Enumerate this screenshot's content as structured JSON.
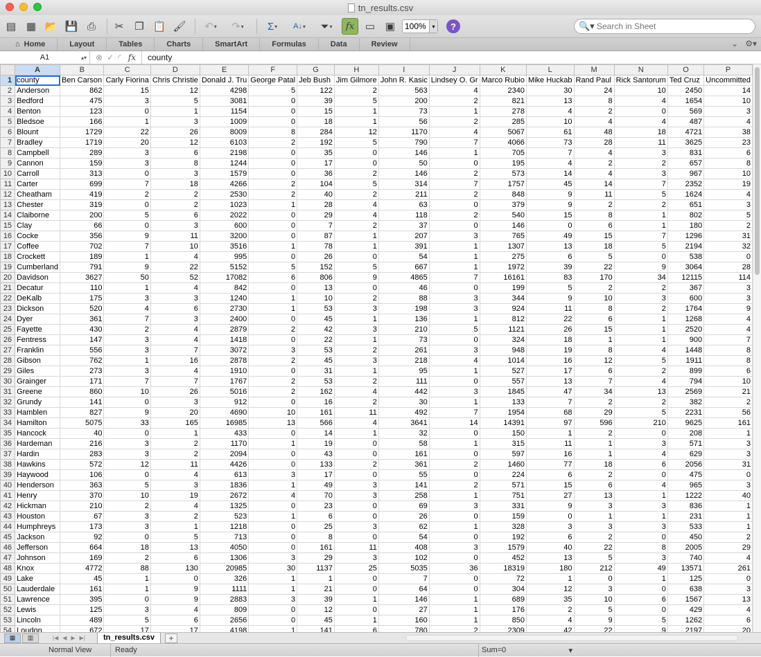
{
  "window": {
    "title": "tn_results.csv"
  },
  "toolbar": {
    "zoom": "100%",
    "search_placeholder": "Search in Sheet"
  },
  "ribbon": {
    "tabs": [
      "Home",
      "Layout",
      "Tables",
      "Charts",
      "SmartArt",
      "Formulas",
      "Data",
      "Review"
    ]
  },
  "formula_bar": {
    "cell_ref": "A1",
    "fx": "fx",
    "content": "county"
  },
  "grid": {
    "column_letters": [
      "A",
      "B",
      "C",
      "D",
      "E",
      "F",
      "G",
      "H",
      "I",
      "J",
      "K",
      "L",
      "M",
      "N",
      "O",
      "P"
    ],
    "rows": [
      [
        "county",
        "Ben Carson",
        "Carly Fiorina",
        "Chris Christie",
        "Donald J. Tru",
        "George Patal",
        "Jeb Bush",
        "Jim Gilmore",
        "John R. Kasic",
        "Lindsey O. Gr",
        "Marco Rubio",
        "Mike Huckab",
        "Rand Paul",
        "Rick Santorum",
        "Ted Cruz",
        "Uncommitted"
      ],
      [
        "Anderson",
        "862",
        "15",
        "12",
        "4298",
        "5",
        "122",
        "2",
        "563",
        "4",
        "2340",
        "30",
        "24",
        "10",
        "2450",
        "14"
      ],
      [
        "Bedford",
        "475",
        "3",
        "5",
        "3081",
        "0",
        "39",
        "5",
        "200",
        "2",
        "821",
        "13",
        "8",
        "4",
        "1654",
        "10"
      ],
      [
        "Benton",
        "123",
        "0",
        "1",
        "1154",
        "0",
        "15",
        "1",
        "73",
        "1",
        "278",
        "4",
        "2",
        "0",
        "569",
        "3"
      ],
      [
        "Bledsoe",
        "166",
        "1",
        "3",
        "1009",
        "0",
        "18",
        "1",
        "56",
        "2",
        "285",
        "10",
        "4",
        "4",
        "487",
        "4"
      ],
      [
        "Blount",
        "1729",
        "22",
        "26",
        "8009",
        "8",
        "284",
        "12",
        "1170",
        "4",
        "5067",
        "61",
        "48",
        "18",
        "4721",
        "38"
      ],
      [
        "Bradley",
        "1719",
        "20",
        "12",
        "6103",
        "2",
        "192",
        "5",
        "790",
        "7",
        "4066",
        "73",
        "28",
        "11",
        "3625",
        "23"
      ],
      [
        "Campbell",
        "289",
        "3",
        "6",
        "2198",
        "0",
        "35",
        "0",
        "146",
        "1",
        "705",
        "7",
        "4",
        "3",
        "831",
        "6"
      ],
      [
        "Cannon",
        "159",
        "3",
        "8",
        "1244",
        "0",
        "17",
        "0",
        "50",
        "0",
        "195",
        "4",
        "2",
        "2",
        "657",
        "8"
      ],
      [
        "Carroll",
        "313",
        "0",
        "3",
        "1579",
        "0",
        "36",
        "2",
        "146",
        "2",
        "573",
        "14",
        "4",
        "3",
        "967",
        "10"
      ],
      [
        "Carter",
        "699",
        "7",
        "18",
        "4266",
        "2",
        "104",
        "5",
        "314",
        "7",
        "1757",
        "45",
        "14",
        "7",
        "2352",
        "19"
      ],
      [
        "Cheatham",
        "419",
        "2",
        "2",
        "2530",
        "2",
        "40",
        "2",
        "211",
        "2",
        "848",
        "9",
        "11",
        "5",
        "1624",
        "4"
      ],
      [
        "Chester",
        "319",
        "0",
        "2",
        "1023",
        "1",
        "28",
        "4",
        "63",
        "0",
        "379",
        "9",
        "2",
        "2",
        "651",
        "3"
      ],
      [
        "Claiborne",
        "200",
        "5",
        "6",
        "2022",
        "0",
        "29",
        "4",
        "118",
        "2",
        "540",
        "15",
        "8",
        "1",
        "802",
        "5"
      ],
      [
        "Clay",
        "66",
        "0",
        "3",
        "600",
        "0",
        "7",
        "2",
        "37",
        "0",
        "146",
        "0",
        "6",
        "1",
        "180",
        "2"
      ],
      [
        "Cocke",
        "356",
        "9",
        "11",
        "3200",
        "0",
        "87",
        "1",
        "207",
        "3",
        "765",
        "49",
        "15",
        "7",
        "1296",
        "31"
      ],
      [
        "Coffee",
        "702",
        "7",
        "10",
        "3516",
        "1",
        "78",
        "1",
        "391",
        "1",
        "1307",
        "13",
        "18",
        "5",
        "2194",
        "32"
      ],
      [
        "Crockett",
        "189",
        "1",
        "4",
        "995",
        "0",
        "26",
        "0",
        "54",
        "1",
        "275",
        "6",
        "5",
        "0",
        "538",
        "0"
      ],
      [
        "Cumberland",
        "791",
        "9",
        "22",
        "5152",
        "5",
        "152",
        "5",
        "667",
        "1",
        "1972",
        "39",
        "22",
        "9",
        "3064",
        "28"
      ],
      [
        "Davidson",
        "3627",
        "50",
        "52",
        "17082",
        "6",
        "806",
        "9",
        "4865",
        "7",
        "16161",
        "83",
        "170",
        "34",
        "12115",
        "114"
      ],
      [
        "Decatur",
        "110",
        "1",
        "4",
        "842",
        "0",
        "13",
        "0",
        "46",
        "0",
        "199",
        "5",
        "2",
        "2",
        "367",
        "3"
      ],
      [
        "DeKalb",
        "175",
        "3",
        "3",
        "1240",
        "1",
        "10",
        "2",
        "88",
        "3",
        "344",
        "9",
        "10",
        "3",
        "600",
        "3"
      ],
      [
        "Dickson",
        "520",
        "4",
        "6",
        "2730",
        "1",
        "53",
        "3",
        "198",
        "3",
        "924",
        "11",
        "8",
        "2",
        "1764",
        "9"
      ],
      [
        "Dyer",
        "361",
        "7",
        "3",
        "2400",
        "0",
        "45",
        "1",
        "136",
        "1",
        "812",
        "22",
        "6",
        "1",
        "1268",
        "4"
      ],
      [
        "Fayette",
        "430",
        "2",
        "4",
        "2879",
        "2",
        "42",
        "3",
        "210",
        "5",
        "1121",
        "26",
        "15",
        "1",
        "2520",
        "4"
      ],
      [
        "Fentress",
        "147",
        "3",
        "4",
        "1418",
        "0",
        "22",
        "1",
        "73",
        "0",
        "324",
        "18",
        "1",
        "1",
        "900",
        "7"
      ],
      [
        "Franklin",
        "556",
        "3",
        "7",
        "3072",
        "3",
        "53",
        "2",
        "261",
        "3",
        "948",
        "19",
        "8",
        "4",
        "1448",
        "8"
      ],
      [
        "Gibson",
        "762",
        "1",
        "16",
        "2878",
        "2",
        "45",
        "3",
        "218",
        "4",
        "1014",
        "16",
        "12",
        "5",
        "1911",
        "8"
      ],
      [
        "Giles",
        "273",
        "3",
        "4",
        "1910",
        "0",
        "31",
        "1",
        "95",
        "1",
        "527",
        "17",
        "6",
        "2",
        "899",
        "6"
      ],
      [
        "Grainger",
        "171",
        "7",
        "7",
        "1767",
        "2",
        "53",
        "2",
        "111",
        "0",
        "557",
        "13",
        "7",
        "4",
        "794",
        "10"
      ],
      [
        "Greene",
        "860",
        "10",
        "26",
        "5016",
        "2",
        "162",
        "4",
        "442",
        "3",
        "1845",
        "47",
        "34",
        "13",
        "2569",
        "21"
      ],
      [
        "Grundy",
        "141",
        "0",
        "3",
        "912",
        "0",
        "16",
        "2",
        "30",
        "1",
        "133",
        "7",
        "2",
        "2",
        "382",
        "2"
      ],
      [
        "Hamblen",
        "827",
        "9",
        "20",
        "4690",
        "10",
        "161",
        "11",
        "492",
        "7",
        "1954",
        "68",
        "29",
        "5",
        "2231",
        "56"
      ],
      [
        "Hamilton",
        "5075",
        "33",
        "165",
        "16985",
        "13",
        "566",
        "4",
        "3641",
        "14",
        "14391",
        "97",
        "596",
        "210",
        "9625",
        "161"
      ],
      [
        "Hancock",
        "40",
        "0",
        "1",
        "433",
        "0",
        "14",
        "1",
        "32",
        "0",
        "150",
        "1",
        "2",
        "0",
        "208",
        "1"
      ],
      [
        "Hardeman",
        "216",
        "3",
        "2",
        "1170",
        "1",
        "19",
        "0",
        "58",
        "1",
        "315",
        "11",
        "1",
        "3",
        "571",
        "3"
      ],
      [
        "Hardin",
        "283",
        "3",
        "2",
        "2094",
        "0",
        "43",
        "0",
        "161",
        "0",
        "597",
        "16",
        "1",
        "4",
        "629",
        "3"
      ],
      [
        "Hawkins",
        "572",
        "12",
        "11",
        "4426",
        "0",
        "133",
        "2",
        "361",
        "2",
        "1460",
        "77",
        "18",
        "6",
        "2056",
        "31"
      ],
      [
        "Haywood",
        "106",
        "0",
        "4",
        "613",
        "3",
        "17",
        "0",
        "55",
        "0",
        "224",
        "6",
        "2",
        "0",
        "475",
        "0"
      ],
      [
        "Henderson",
        "363",
        "5",
        "3",
        "1836",
        "1",
        "49",
        "3",
        "141",
        "2",
        "571",
        "15",
        "6",
        "4",
        "965",
        "3"
      ],
      [
        "Henry",
        "370",
        "10",
        "19",
        "2672",
        "4",
        "70",
        "3",
        "258",
        "1",
        "751",
        "27",
        "13",
        "1",
        "1222",
        "40"
      ],
      [
        "Hickman",
        "210",
        "2",
        "4",
        "1325",
        "0",
        "23",
        "0",
        "69",
        "3",
        "331",
        "9",
        "3",
        "3",
        "836",
        "1"
      ],
      [
        "Houston",
        "67",
        "3",
        "2",
        "523",
        "1",
        "6",
        "0",
        "26",
        "0",
        "159",
        "0",
        "1",
        "1",
        "231",
        "1"
      ],
      [
        "Humphreys",
        "173",
        "3",
        "1",
        "1218",
        "0",
        "25",
        "3",
        "62",
        "1",
        "328",
        "3",
        "3",
        "3",
        "533",
        "1"
      ],
      [
        "Jackson",
        "92",
        "0",
        "5",
        "713",
        "0",
        "8",
        "0",
        "54",
        "0",
        "192",
        "6",
        "2",
        "0",
        "450",
        "2"
      ],
      [
        "Jefferson",
        "664",
        "18",
        "13",
        "4050",
        "0",
        "161",
        "11",
        "408",
        "3",
        "1579",
        "40",
        "22",
        "8",
        "2005",
        "29"
      ],
      [
        "Johnson",
        "169",
        "2",
        "6",
        "1306",
        "3",
        "29",
        "3",
        "102",
        "0",
        "452",
        "13",
        "5",
        "3",
        "740",
        "4"
      ],
      [
        "Knox",
        "4772",
        "88",
        "130",
        "20985",
        "30",
        "1137",
        "25",
        "5035",
        "36",
        "18319",
        "180",
        "212",
        "49",
        "13571",
        "261"
      ],
      [
        "Lake",
        "45",
        "1",
        "0",
        "326",
        "1",
        "1",
        "0",
        "7",
        "0",
        "72",
        "1",
        "0",
        "1",
        "125",
        "0"
      ],
      [
        "Lauderdale",
        "161",
        "1",
        "9",
        "1111",
        "1",
        "21",
        "0",
        "64",
        "0",
        "304",
        "12",
        "3",
        "0",
        "638",
        "3"
      ],
      [
        "Lawrence",
        "395",
        "0",
        "9",
        "2883",
        "3",
        "39",
        "1",
        "146",
        "1",
        "689",
        "35",
        "10",
        "6",
        "1567",
        "13"
      ],
      [
        "Lewis",
        "125",
        "3",
        "4",
        "809",
        "0",
        "12",
        "0",
        "27",
        "1",
        "176",
        "2",
        "5",
        "0",
        "429",
        "4"
      ],
      [
        "Lincoln",
        "489",
        "5",
        "6",
        "2656",
        "0",
        "45",
        "1",
        "160",
        "1",
        "850",
        "4",
        "9",
        "5",
        "1262",
        "6"
      ],
      [
        "Loudon",
        "672",
        "17",
        "17",
        "4198",
        "1",
        "141",
        "6",
        "780",
        "2",
        "2309",
        "42",
        "22",
        "9",
        "2197",
        "20"
      ]
    ]
  },
  "sheet_tabs": {
    "active": "tn_results.csv",
    "add_label": "+"
  },
  "status": {
    "view": "Normal View",
    "state": "Ready",
    "sum": "Sum=0"
  }
}
